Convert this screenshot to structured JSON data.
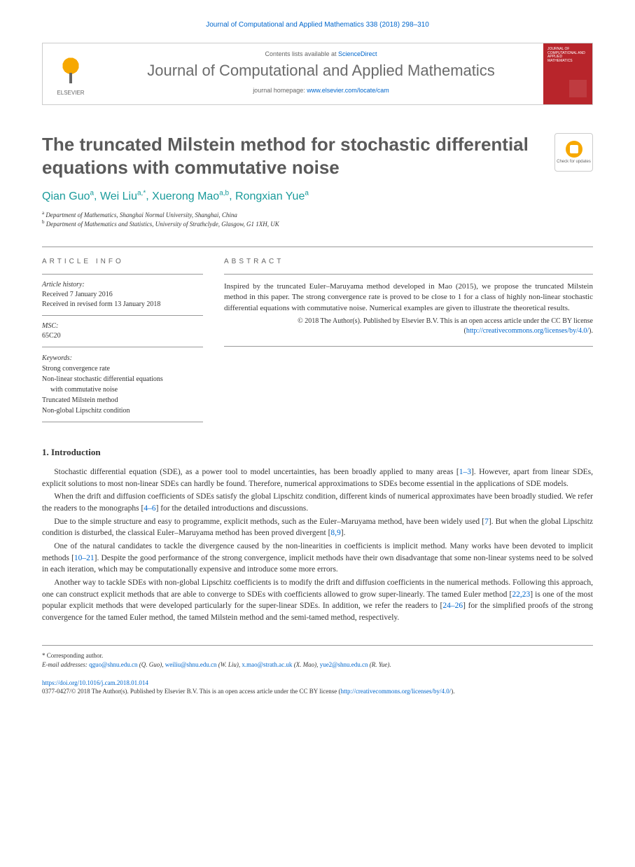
{
  "header_citation": "Journal of Computational and Applied Mathematics 338 (2018) 298–310",
  "contents_lists": "Contents lists available at ",
  "sciencedirect": "ScienceDirect",
  "journal_name": "Journal of Computational and Applied Mathematics",
  "homepage_label": "journal homepage: ",
  "homepage_url": "www.elsevier.com/locate/cam",
  "elsevier": "ELSEVIER",
  "cover_title": "JOURNAL OF COMPUTATIONAL AND APPLIED MATHEMATICS",
  "title": "The truncated Milstein method for stochastic differential equations with commutative noise",
  "check_updates": "Check for updates",
  "authors": [
    {
      "name": "Qian Guo",
      "aff": "a"
    },
    {
      "name": "Wei Liu",
      "aff": "a,",
      "star": "*"
    },
    {
      "name": "Xuerong Mao",
      "aff": "a,b"
    },
    {
      "name": "Rongxian Yue",
      "aff": "a"
    }
  ],
  "affiliations": [
    {
      "sup": "a",
      "text": "Department of Mathematics, Shanghai Normal University, Shanghai, China"
    },
    {
      "sup": "b",
      "text": "Department of Mathematics and Statistics, University of Strathclyde, Glasgow, G1 1XH, UK"
    }
  ],
  "info_heading": "ARTICLE INFO",
  "abstract_heading": "ABSTRACT",
  "article_history_label": "Article history:",
  "received": "Received 7 January 2016",
  "received_revised": "Received in revised form 13 January 2018",
  "msc_label": "MSC:",
  "msc_value": "65C20",
  "keywords_label": "Keywords:",
  "keywords": [
    "Strong convergence rate",
    "Non-linear stochastic differential equations",
    "with commutative noise",
    "Truncated Milstein method",
    "Non-global Lipschitz condition"
  ],
  "abstract_text": "Inspired by the truncated Euler–Maruyama method developed in Mao (2015), we propose the truncated Milstein method in this paper. The strong convergence rate is proved to be close to 1 for a class of highly non-linear stochastic differential equations with commutative noise. Numerical examples are given to illustrate the theoretical results.",
  "abstract_copyright": "© 2018 The Author(s). Published by Elsevier B.V. This is an open access article under the CC BY license (",
  "cc_url": "http://creativecommons.org/licenses/by/4.0/",
  "abstract_copyright_end": ").",
  "section1_title": "1.  Introduction",
  "para1_a": "Stochastic differential equation (SDE), as a power tool to model uncertainties, has been broadly applied to many areas [",
  "para1_ref1": "1–3",
  "para1_b": "]. However, apart from linear SDEs, explicit solutions to most non-linear SDEs can hardly be found. Therefore, numerical approximations to SDEs become essential in the applications of SDE models.",
  "para2_a": "When the drift and diffusion coefficients of SDEs satisfy the global Lipschitz condition, different kinds of numerical approximates have been broadly studied. We refer the readers to the monographs [",
  "para2_ref1": "4–6",
  "para2_b": "] for the detailed introductions and discussions.",
  "para3_a": "Due to the simple structure and easy to programme, explicit methods, such as the Euler–Maruyama method, have been widely used [",
  "para3_ref1": "7",
  "para3_b": "]. But when the global Lipschitz condition is disturbed, the classical Euler–Maruyama method has been proved divergent [",
  "para3_ref2": "8,9",
  "para3_c": "].",
  "para4_a": "One of the natural candidates to tackle the divergence caused by the non-linearities in coefficients is implicit method. Many works have been devoted to implicit methods [",
  "para4_ref1": "10–21",
  "para4_b": "]. Despite the good performance of the strong convergence, implicit methods have their own disadvantage that some non-linear systems need to be solved in each iteration, which may be computationally expensive and introduce some more errors.",
  "para5_a": "Another way to tackle SDEs with non-global Lipschitz coefficients is to modify the drift and diffusion coefficients in the numerical methods. Following this approach, one can construct explicit methods that are able to converge to SDEs with coefficients allowed to grow super-linearly. The tamed Euler method [",
  "para5_ref1": "22,23",
  "para5_b": "] is one of the most popular explicit methods that were developed particularly for the super-linear SDEs. In addition, we refer the readers to [",
  "para5_ref2": "24–26",
  "para5_c": "] for the simplified proofs of the strong convergence for the tamed Euler method, the tamed Milstein method and the semi-tamed method, respectively.",
  "corresponding": "* Corresponding author.",
  "email_label": "E-mail addresses: ",
  "emails": [
    {
      "addr": "qguo@shnu.edu.cn",
      "who": " (Q. Guo), "
    },
    {
      "addr": "weiliu@shnu.edu.cn",
      "who": " (W. Liu), "
    },
    {
      "addr": "x.mao@strath.ac.uk",
      "who": " (X. Mao), "
    },
    {
      "addr": "yue2@shnu.edu.cn",
      "who": " (R. Yue)."
    }
  ],
  "doi": "https://doi.org/10.1016/j.cam.2018.01.014",
  "issn_line": "0377-0427/© 2018 The Author(s). Published by Elsevier B.V. This is an open access article under the CC BY license (",
  "cc_url2": "http://creativecommons.org/licenses/by/4.0/",
  "issn_end": ")."
}
